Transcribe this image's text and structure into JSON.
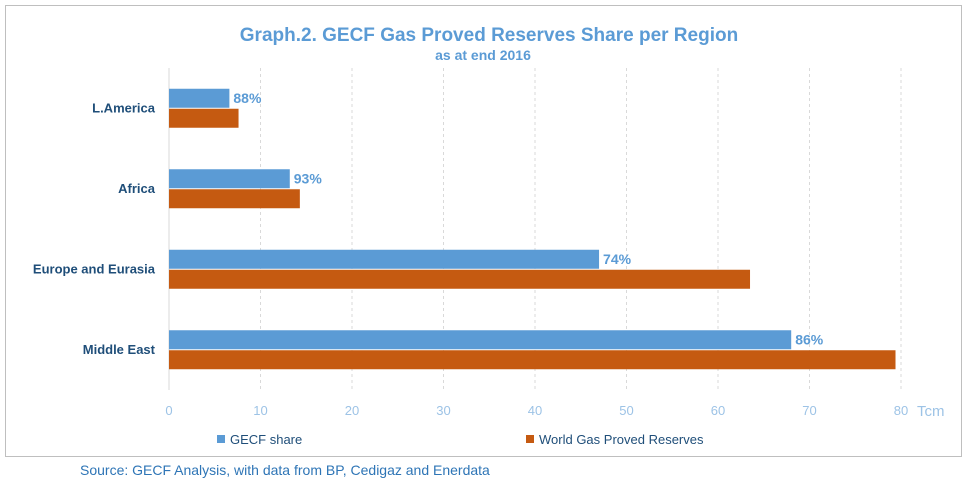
{
  "chart_data": {
    "type": "bar",
    "orientation": "horizontal",
    "title": "Graph.2. GECF Gas Proved Reserves Share per Region",
    "subtitle": "as at end 2016",
    "categories": [
      "L.America",
      "Africa",
      "Europe and Eurasia",
      "Middle East"
    ],
    "series": [
      {
        "name": "GECF share",
        "color": "#5b9bd5",
        "values": [
          6.6,
          13.2,
          47,
          68
        ],
        "data_labels": [
          "88%",
          "93%",
          "74%",
          "86%"
        ]
      },
      {
        "name": "World Gas Proved Reserves",
        "color": "#c55a11",
        "values": [
          7.6,
          14.3,
          63.5,
          79.4
        ]
      }
    ],
    "xlim": [
      0,
      80
    ],
    "x_ticks": [
      "0",
      "10",
      "20",
      "30",
      "40",
      "50",
      "60",
      "70",
      "80"
    ],
    "x_unit": "Tcm",
    "grid": "vertical dashed",
    "legend": "bottom"
  },
  "source": "Source: GECF Analysis, with data from BP, Cedigaz and Enerdata"
}
